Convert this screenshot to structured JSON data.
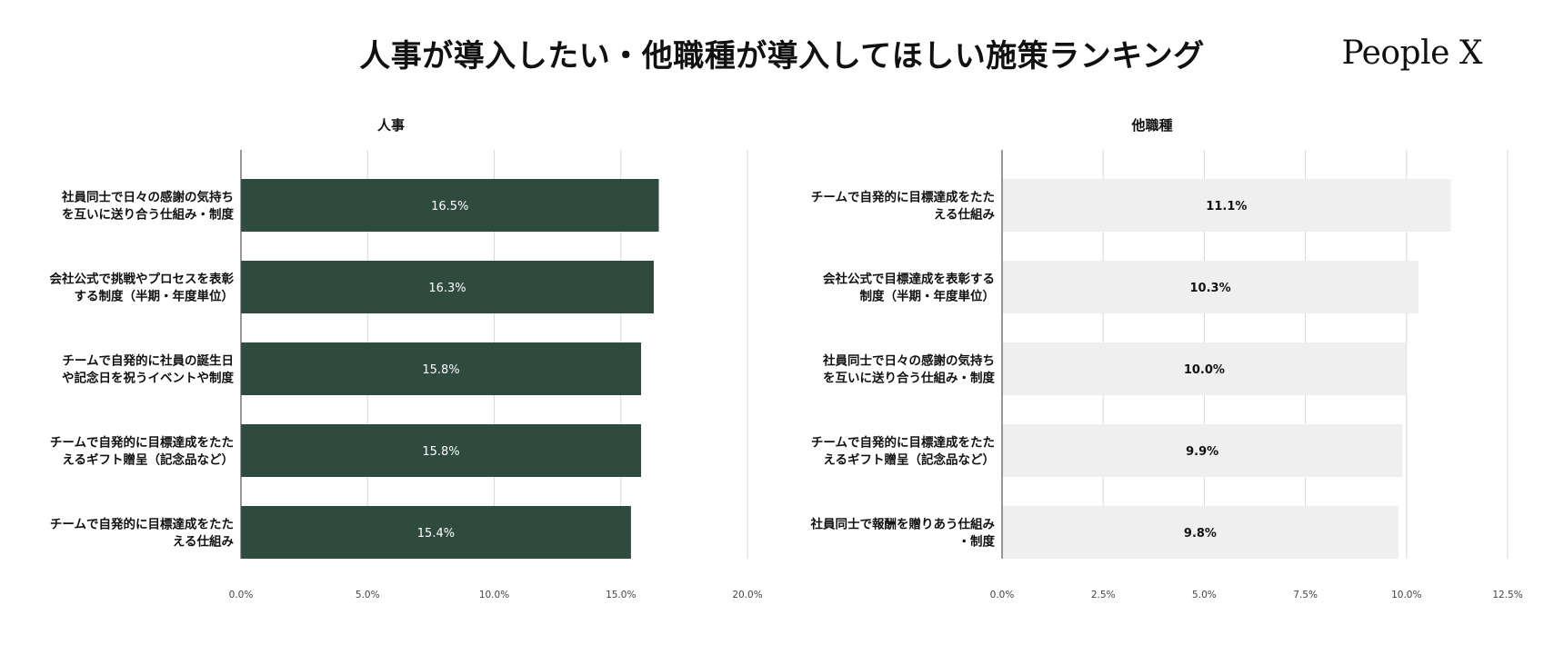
{
  "page": {
    "title": "人事が導入したい・他職種が導入してほしい施策ランキング",
    "brand": "People X"
  },
  "colors": {
    "hr_bar": "#2f4a3f",
    "hr_label": "#ffffff",
    "other_bar": "#efefef",
    "other_label": "#111111",
    "grid": "#d9d9d9",
    "axis": "#555555"
  },
  "chart_data": [
    {
      "type": "bar",
      "orientation": "horizontal",
      "title": "人事",
      "categories": [
        "社員同士で日々の感謝の気持ち\nを互いに送り合う仕組み・制度",
        "会社公式で挑戦やプロセスを表彰\nする制度（半期・年度単位）",
        "チームで自発的に社員の誕生日\nや記念日を祝うイベントや制度",
        "チームで自発的に目標達成をたた\nえるギフト贈呈（記念品など）",
        "チームで自発的に目標達成をたた\nえる仕組み"
      ],
      "values": [
        16.5,
        16.3,
        15.8,
        15.8,
        15.4
      ],
      "data_labels": [
        "16.5%",
        "16.3%",
        "15.8%",
        "15.8%",
        "15.4%"
      ],
      "xlim": [
        0,
        20
      ],
      "ticks": [
        0,
        5,
        10,
        15,
        20
      ],
      "tick_labels": [
        "0.0%",
        "5.0%",
        "10.0%",
        "15.0%",
        "20.0%"
      ],
      "grid": true,
      "xlabel": "",
      "ylabel": ""
    },
    {
      "type": "bar",
      "orientation": "horizontal",
      "title": "他職種",
      "categories": [
        "チームで自発的に目標達成をたた\nえる仕組み",
        "会社公式で目標達成を表彰する\n制度（半期・年度単位）",
        "社員同士で日々の感謝の気持ち\nを互いに送り合う仕組み・制度",
        "チームで自発的に目標達成をたた\nえるギフト贈呈（記念品など）",
        "社員同士で報酬を贈りあう仕組み\n・制度"
      ],
      "values": [
        11.1,
        10.3,
        10.0,
        9.9,
        9.8
      ],
      "data_labels": [
        "11.1%",
        "10.3%",
        "10.0%",
        "9.9%",
        "9.8%"
      ],
      "xlim": [
        0,
        12.5
      ],
      "ticks": [
        0,
        2.5,
        5,
        7.5,
        10,
        12.5
      ],
      "tick_labels": [
        "0.0%",
        "2.5%",
        "5.0%",
        "7.5%",
        "10.0%",
        "12.5%"
      ],
      "grid": true,
      "xlabel": "",
      "ylabel": ""
    }
  ]
}
